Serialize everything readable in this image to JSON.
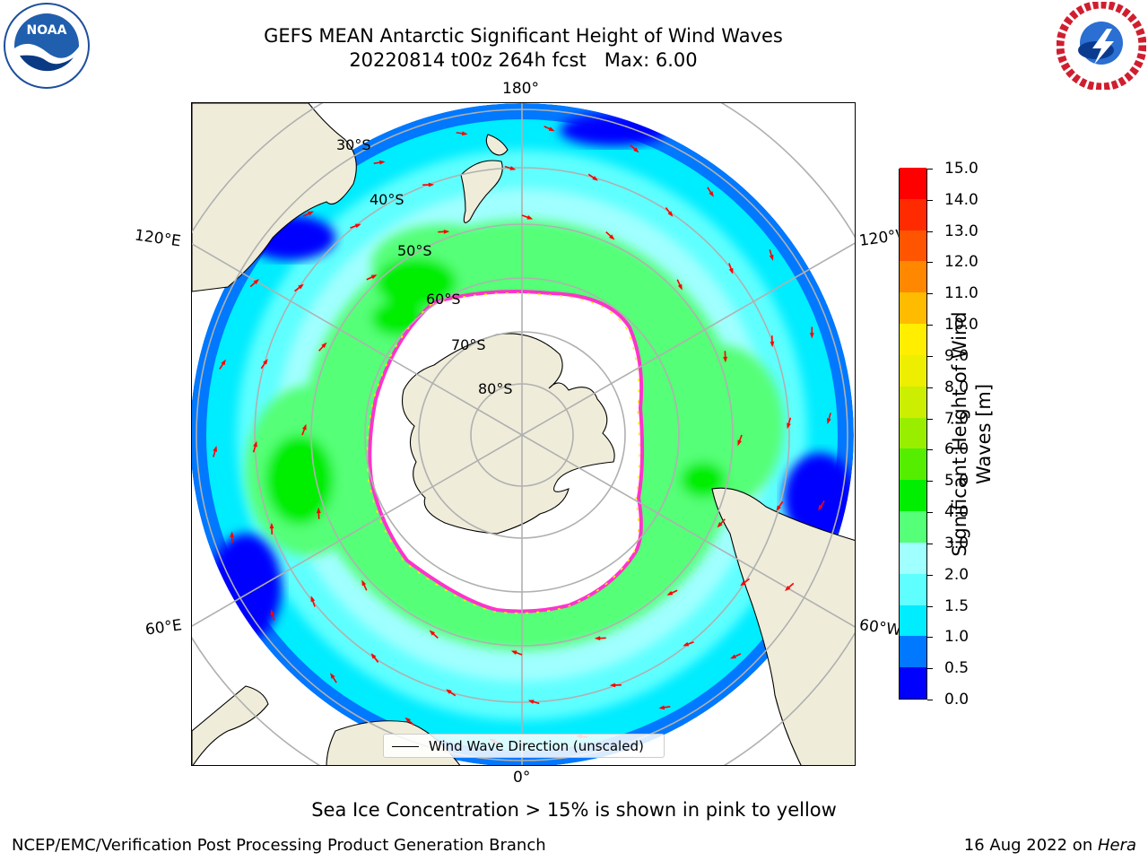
{
  "title": {
    "line1": "GEFS MEAN Antarctic Significant Height of Wind Waves",
    "line2": "20220814 t00z 264h fcst   Max: 6.00"
  },
  "map": {
    "projection": "south-polar-stereographic",
    "longitude_labels": {
      "top": "180°",
      "bottom": "0°",
      "upper_left": "120°E",
      "upper_right": "120°W",
      "lower_left": "60°E",
      "lower_right": "60°W"
    },
    "latitude_labels": [
      "30°S",
      "40°S",
      "50°S",
      "60°S",
      "70°S",
      "80°S"
    ],
    "legend_label": "Wind Wave Direction (unscaled)",
    "colors": {
      "land": "#efedda",
      "graticule": "#b0b0b0",
      "arrow": "#ff0000",
      "sea_ice": [
        "#ff33cc",
        "#ff99ff",
        "#ffee00"
      ]
    }
  },
  "colorbar": {
    "title": "Significant Height of Wind Waves [m]",
    "min": 0,
    "max": 15,
    "levels": [
      0,
      0.5,
      1,
      1.5,
      2,
      3,
      4,
      5,
      6,
      7,
      8,
      9,
      10,
      11,
      12,
      13,
      14,
      15
    ],
    "tick_labels": [
      "0.0",
      "0.5",
      "1.0",
      "1.5",
      "2.0",
      "3.0",
      "4.0",
      "5.0",
      "6.0",
      "7.0",
      "8.0",
      "9.0",
      "10.0",
      "11.0",
      "12.0",
      "13.0",
      "14.0",
      "15.0"
    ],
    "colors": [
      "#0000ff",
      "#0078ff",
      "#00ecff",
      "#5fffff",
      "#a0ffff",
      "#55ff77",
      "#00ee00",
      "#55ee00",
      "#99ee00",
      "#ccee00",
      "#eeee00",
      "#ffee00",
      "#ffbb00",
      "#ff8800",
      "#ff5500",
      "#ff2a00",
      "#ff0000"
    ]
  },
  "note": "Sea Ice Concentration > 15% is shown in pink to yellow",
  "footer": {
    "left": "NCEP/EMC/Verification Post Processing Product Generation Branch",
    "right_date": "16 Aug 2022 on ",
    "right_machine": "Hera"
  }
}
